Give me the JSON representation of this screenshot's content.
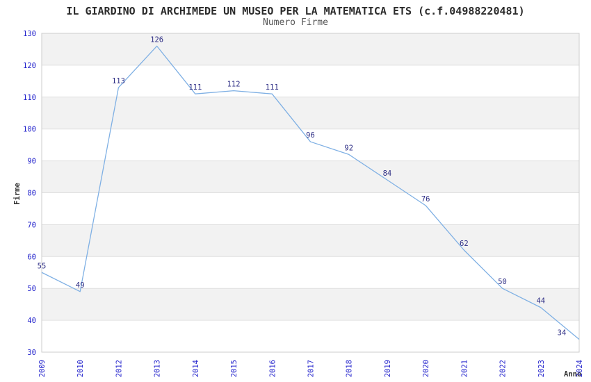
{
  "chart_data": {
    "type": "line",
    "title": "IL GIARDINO DI ARCHIMEDE UN MUSEO PER LA MATEMATICA ETS (c.f.04988220481)",
    "subtitle": "Numero Firme",
    "xlabel": "Anno",
    "ylabel": "Firme",
    "categories": [
      "2009",
      "2010",
      "2012",
      "2013",
      "2014",
      "2015",
      "2016",
      "2017",
      "2018",
      "2019",
      "2020",
      "2021",
      "2022",
      "2023",
      "2024"
    ],
    "values": [
      55,
      49,
      113,
      126,
      111,
      112,
      111,
      96,
      92,
      84,
      76,
      62,
      50,
      44,
      34
    ],
    "ylim": [
      30,
      130
    ],
    "ytick_step": 10,
    "grid": true,
    "legend_position": "none",
    "band_fill": "alternating horizontal bands, gray on top band",
    "colors": {
      "line": "#7fb0e4",
      "tick_label": "#2323cc",
      "data_label": "#2e2e85",
      "band": "#f2f2f2",
      "band_alt": "#ffffff",
      "grid_line": "#e0e0e0",
      "border": "#cccccc",
      "title": "#2b2b2b",
      "subtitle": "#555555",
      "axis_title": "#333333"
    }
  }
}
